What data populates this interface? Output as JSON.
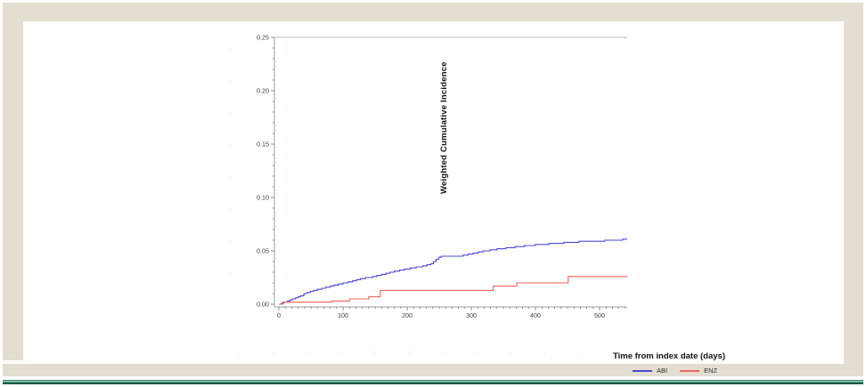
{
  "frame": {
    "band_color": "#e3ded1",
    "rule_green_dark": "#175e43",
    "rule_green_light": "#9ccdb4"
  },
  "chart_data": {
    "type": "line",
    "subtype": "step-cumulative-incidence",
    "title": "",
    "xlabel": "Time from index date (days)",
    "ylabel": "Weighted Cumulative Incidence",
    "xlim": [
      0,
      543
    ],
    "ylim": [
      0,
      0.25
    ],
    "x_ticks": [
      0,
      100,
      200,
      300,
      400,
      500
    ],
    "x_minor_step": 10,
    "y_ticks": [
      0.0,
      0.05,
      0.1,
      0.15,
      0.2,
      0.25
    ],
    "y_minor_step": 0.01,
    "grid": false,
    "legend_position": "bottom-center",
    "axis_color": "#9aa2aa",
    "tick_color": "#6e777f",
    "tick_label_color": "#3d4349",
    "series": [
      {
        "name": "ABI",
        "color": "#4a4ad2",
        "points": [
          [
            0,
            0
          ],
          [
            4,
            0.001
          ],
          [
            8,
            0.002
          ],
          [
            13,
            0.003
          ],
          [
            17,
            0.004
          ],
          [
            21,
            0.005
          ],
          [
            26,
            0.006
          ],
          [
            30,
            0.007
          ],
          [
            34,
            0.008
          ],
          [
            39,
            0.01
          ],
          [
            44,
            0.011
          ],
          [
            49,
            0.012
          ],
          [
            54,
            0.013
          ],
          [
            60,
            0.014
          ],
          [
            67,
            0.015
          ],
          [
            73,
            0.016
          ],
          [
            80,
            0.017
          ],
          [
            86,
            0.018
          ],
          [
            93,
            0.019
          ],
          [
            100,
            0.02
          ],
          [
            108,
            0.021
          ],
          [
            115,
            0.022
          ],
          [
            121,
            0.023
          ],
          [
            127,
            0.024
          ],
          [
            135,
            0.025
          ],
          [
            146,
            0.026
          ],
          [
            153,
            0.027
          ],
          [
            160,
            0.028
          ],
          [
            167,
            0.029
          ],
          [
            173,
            0.03
          ],
          [
            180,
            0.031
          ],
          [
            188,
            0.032
          ],
          [
            196,
            0.033
          ],
          [
            205,
            0.034
          ],
          [
            214,
            0.035
          ],
          [
            224,
            0.036
          ],
          [
            231,
            0.037
          ],
          [
            237,
            0.038
          ],
          [
            241,
            0.04
          ],
          [
            245,
            0.042
          ],
          [
            249,
            0.044
          ],
          [
            253,
            0.045
          ],
          [
            287,
            0.046
          ],
          [
            295,
            0.047
          ],
          [
            303,
            0.048
          ],
          [
            311,
            0.049
          ],
          [
            318,
            0.05
          ],
          [
            329,
            0.051
          ],
          [
            340,
            0.052
          ],
          [
            354,
            0.053
          ],
          [
            368,
            0.054
          ],
          [
            383,
            0.055
          ],
          [
            400,
            0.056
          ],
          [
            421,
            0.057
          ],
          [
            444,
            0.058
          ],
          [
            468,
            0.059
          ],
          [
            508,
            0.06
          ],
          [
            536,
            0.061
          ],
          [
            543,
            0.061
          ]
        ]
      },
      {
        "name": "ENZ",
        "color": "#ef675e",
        "points": [
          [
            0,
            0
          ],
          [
            6,
            0.002
          ],
          [
            82,
            0.003
          ],
          [
            110,
            0.005
          ],
          [
            140,
            0.007
          ],
          [
            158,
            0.013
          ],
          [
            334,
            0.017
          ],
          [
            371,
            0.02
          ],
          [
            451,
            0.026
          ],
          [
            543,
            0.026
          ]
        ]
      }
    ]
  }
}
